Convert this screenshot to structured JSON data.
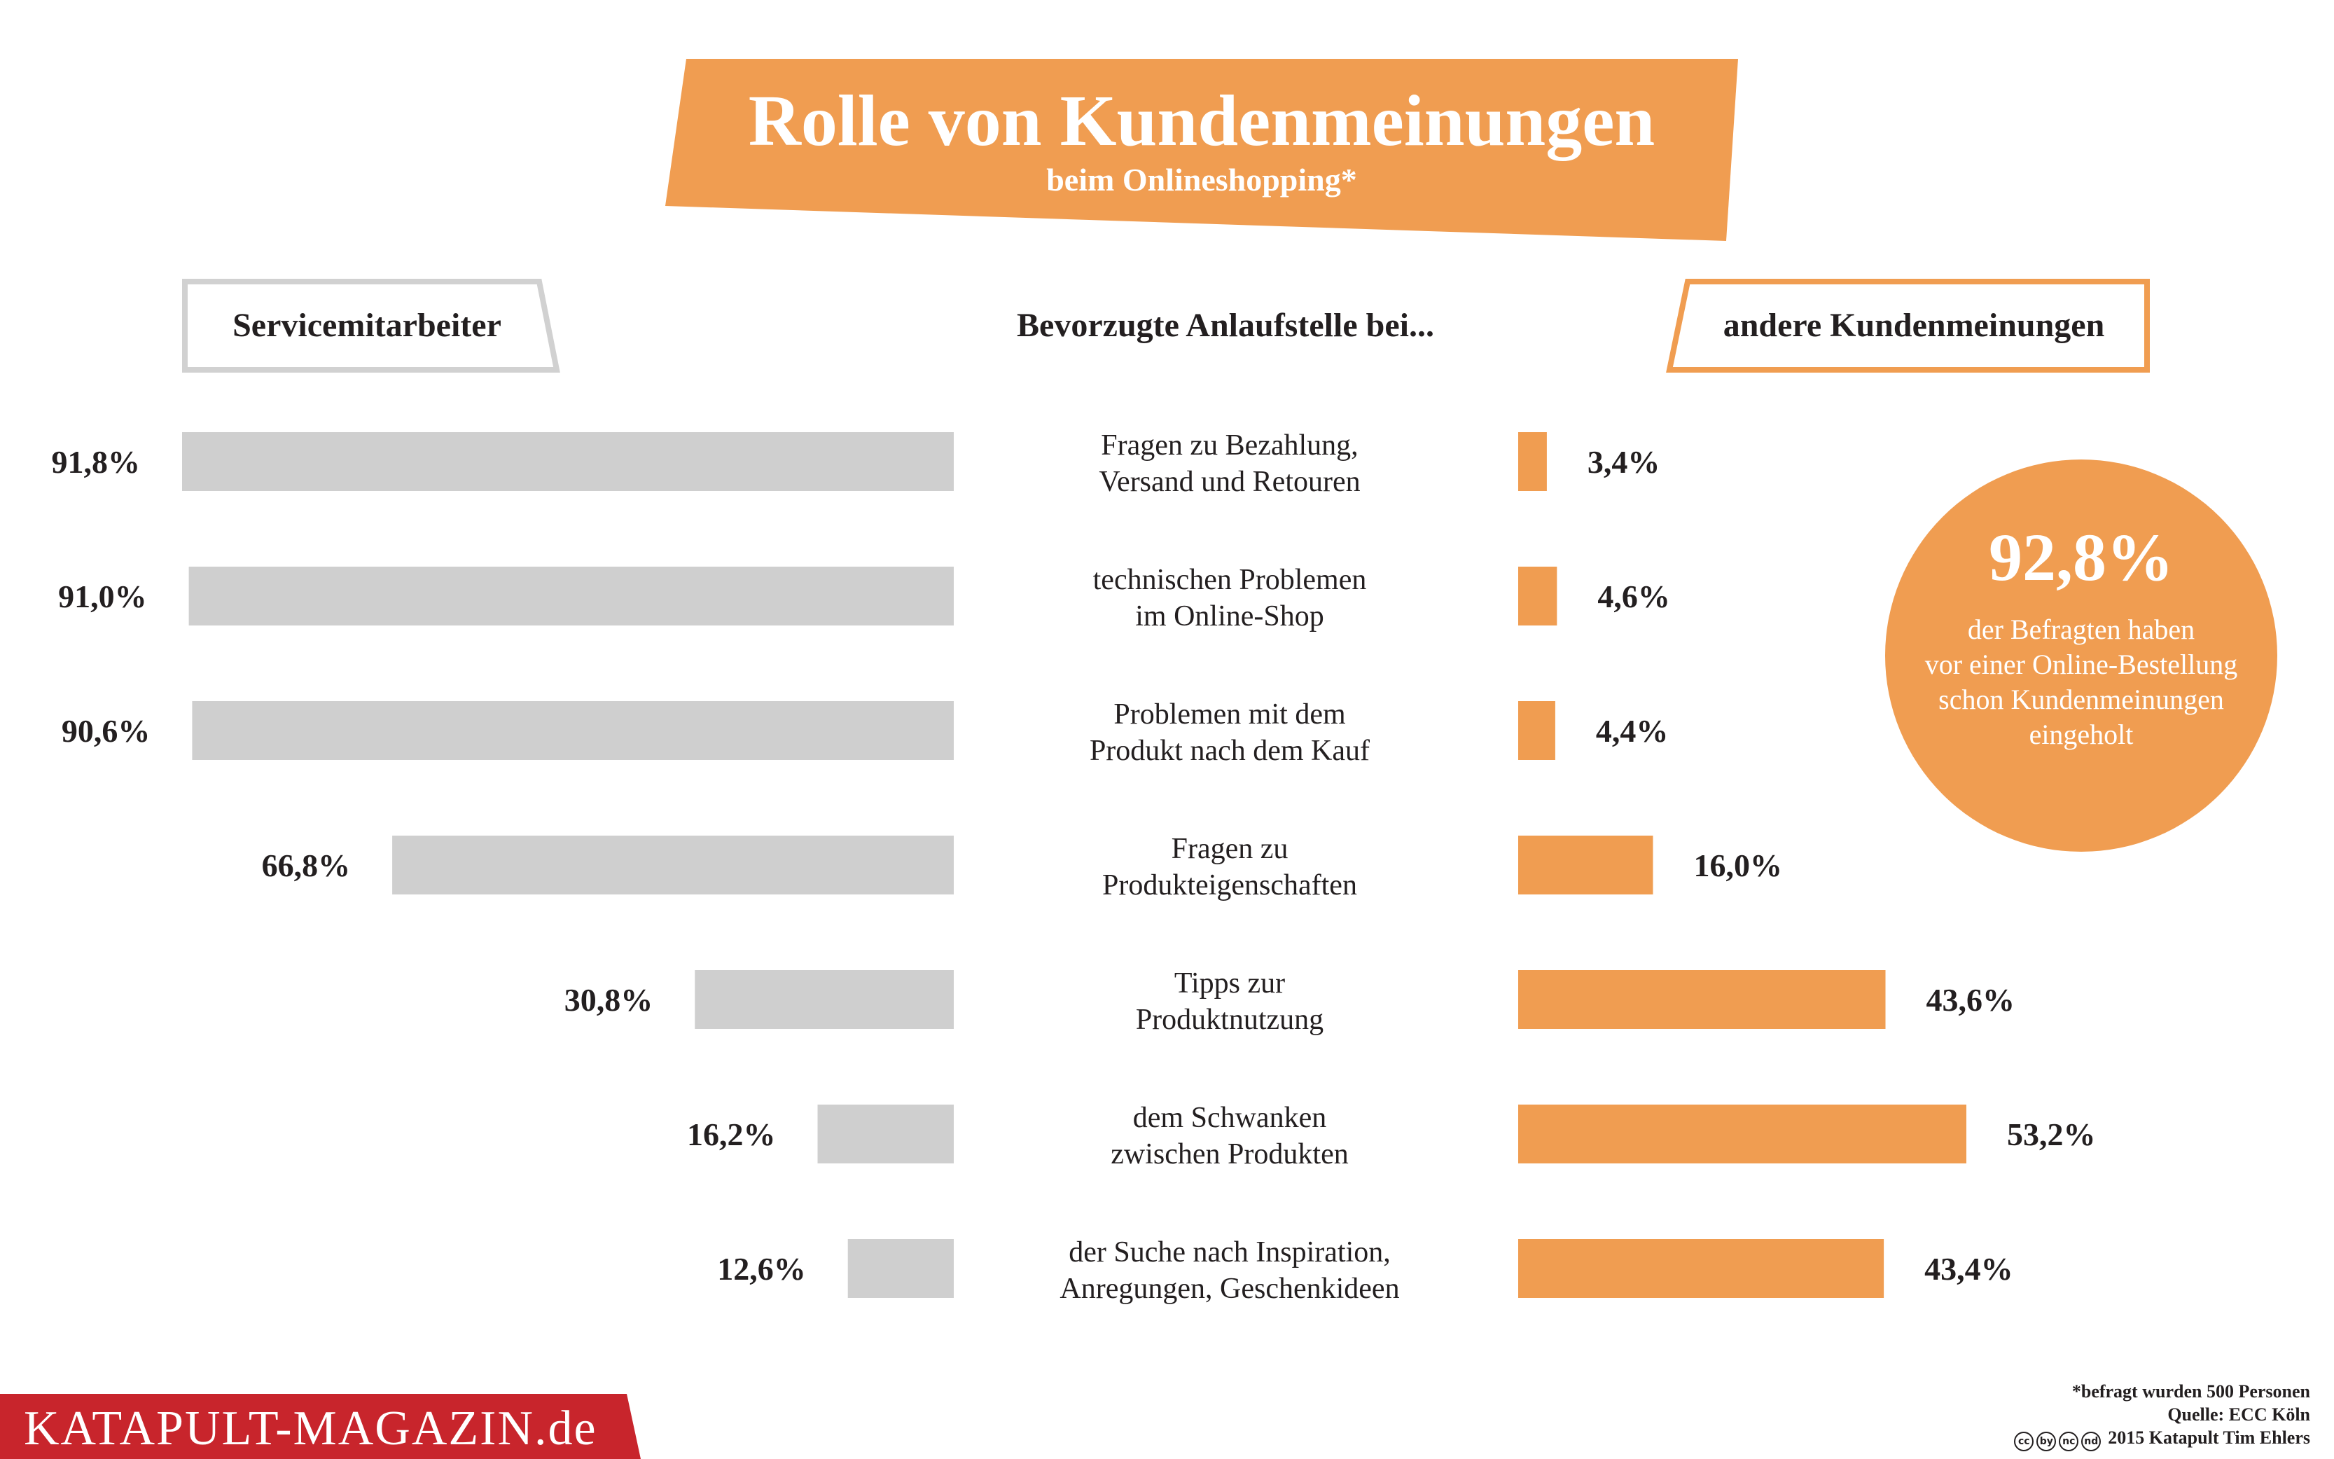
{
  "title": "Rolle von Kundenmeinungen",
  "subtitle": "beim Onlineshopping*",
  "left_header": "Servicemitarbeiter",
  "center_header": "Bevorzugte Anlaufstelle bei...",
  "right_header": "andere Kundenmeinungen",
  "colors": {
    "accent": "#f09d51",
    "grey": "#cfcfcf",
    "text": "#231f20"
  },
  "chart_data": {
    "type": "bar",
    "orientation": "horizontal-butterfly",
    "title": "Bevorzugte Anlaufstelle bei...",
    "categories": [
      [
        "Fragen zu Bezahlung,",
        "Versand und Retouren"
      ],
      [
        "technischen Problemen",
        "im Online-Shop"
      ],
      [
        "Problemen mit dem",
        "Produkt nach dem Kauf"
      ],
      [
        "Fragen zu",
        "Produkteigenschaften"
      ],
      [
        "Tipps zur",
        "Produktnutzung"
      ],
      [
        "dem Schwanken",
        "zwischen Produkten"
      ],
      [
        "der Suche nach Inspiration,",
        "Anregungen, Geschenkideen"
      ]
    ],
    "series": [
      {
        "name": "Servicemitarbeiter",
        "values": [
          91.8,
          91.0,
          90.6,
          66.8,
          30.8,
          16.2,
          12.6
        ],
        "labels": [
          "91,8%",
          "91,0%",
          "90,6%",
          "66,8%",
          "30,8%",
          "16,2%",
          "12,6%"
        ]
      },
      {
        "name": "andere Kundenmeinungen",
        "values": [
          3.4,
          4.6,
          4.4,
          16.0,
          43.6,
          53.2,
          43.4
        ],
        "labels": [
          "3,4%",
          "4,6%",
          "4,4%",
          "16,0%",
          "43,6%",
          "53,2%",
          "43,4%"
        ]
      }
    ],
    "unit": "%"
  },
  "stat": {
    "value": "92,8%",
    "lines": [
      "der Befragten haben",
      "vor einer Online-Bestellung",
      "schon Kundenmeinungen",
      "eingeholt"
    ]
  },
  "brand": "KATAPULT-MAGAZIN.de",
  "footnotes": {
    "sample": "*befragt wurden 500 Personen",
    "source": "Quelle: ECC Köln",
    "credit": "2015 Katapult Tim Ehlers",
    "license_icons": [
      "cc",
      "by",
      "nc",
      "nd"
    ]
  }
}
